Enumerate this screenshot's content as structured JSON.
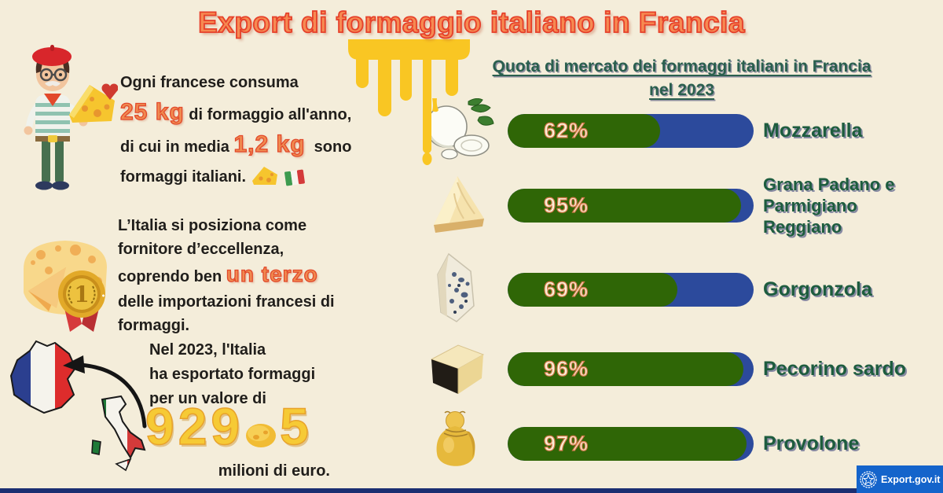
{
  "page": {
    "title": "Export di formaggio italiano in Francia"
  },
  "facts": {
    "consumption": {
      "l1": "Ogni francese consuma",
      "accent1": "25 kg",
      "l2": " di formaggio all'anno,",
      "l3a": "di cui in media ",
      "accent2": "1,2 kg",
      "l3b": "  sono",
      "l4": "formaggi italiani."
    },
    "position": {
      "l1": "L’Italia si posiziona come",
      "l2": "fornitore d’eccellenza,",
      "l3a": "coprendo ben ",
      "accent": "un terzo",
      "l4": "delle importazioni francesi di",
      "l5": "formaggi.",
      "medal_number": "1"
    },
    "export": {
      "l1": "Nel 2023, l'Italia",
      "l2": "ha esportato formaggi",
      "l3": "per un valore di",
      "value_int": "929",
      "value_dec": "5",
      "value_full": "929,5",
      "suffix": "milioni di euro."
    }
  },
  "chart_data": {
    "type": "bar",
    "orientation": "horizontal",
    "title": "Quota di mercato dei formaggi italiani in Francia nel 2023",
    "title_line1": "Quota di mercato dei formaggi italiani in Francia",
    "title_line2": "nel 2023",
    "unit": "%",
    "xlim": [
      0,
      100
    ],
    "grid": false,
    "legend": false,
    "bar_fill_color": "#2f6606",
    "bar_track_color": "#2c4a9c",
    "categories": [
      "Mozzarella",
      "Grana Padano e Parmigiano Reggiano",
      "Gorgonzola",
      "Pecorino sardo",
      "Provolone"
    ],
    "values": [
      62,
      95,
      69,
      96,
      97
    ],
    "rows": [
      {
        "label": "Mozzarella",
        "value": 62,
        "pct_label": "62%",
        "icon": "mozzarella-icon"
      },
      {
        "label": "Grana Padano e Parmigiano Reggiano",
        "label_lines": [
          "Grana Padano e",
          "Parmigiano",
          "Reggiano"
        ],
        "value": 95,
        "pct_label": "95%",
        "icon": "grana-padano-wedge-icon"
      },
      {
        "label": "Gorgonzola",
        "value": 69,
        "pct_label": "69%",
        "icon": "gorgonzola-icon"
      },
      {
        "label": "Pecorino sardo",
        "value": 96,
        "pct_label": "96%",
        "icon": "pecorino-icon"
      },
      {
        "label": "Provolone",
        "value": 97,
        "pct_label": "97%",
        "icon": "provolone-icon"
      }
    ]
  },
  "badge": {
    "label": "Export.gov.it"
  },
  "colors": {
    "background": "#f4edda",
    "title_fill": "#f68a52",
    "title_stroke": "#e6402a",
    "accent_orange": "#f08a50",
    "chart_title_green": "#2a5f4e",
    "label_green": "#1d5c3e",
    "bar_green": "#2f6606",
    "bar_blue": "#2c4a9c",
    "pct_cream": "#f8efd7",
    "cheese_yellow": "#f9c623",
    "number_yellow": "#f6ca35",
    "footer_navy": "#1b2e71",
    "badge_blue": "#1464cb"
  }
}
